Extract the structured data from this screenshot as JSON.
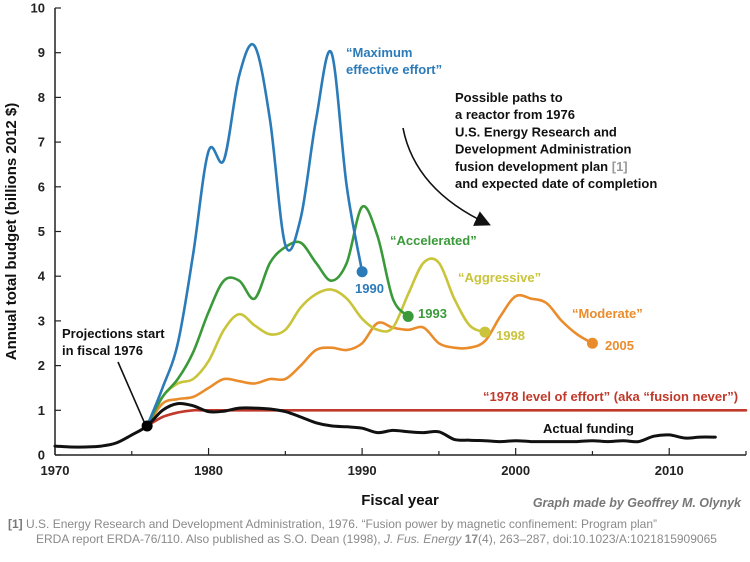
{
  "chart_data": {
    "type": "line",
    "xlabel": "Fiscal year",
    "ylabel": "Annual total budget (billions 2012 $)",
    "xlim": [
      1970,
      2015
    ],
    "ylim": [
      0,
      10
    ],
    "xticks": [
      1970,
      1980,
      1990,
      2000,
      2010
    ],
    "yticks": [
      0,
      1,
      2,
      3,
      4,
      5,
      6,
      7,
      8,
      9,
      10
    ],
    "grid": false,
    "series": [
      {
        "name": "“Maximum effective effort”",
        "color": "#2b7bb9",
        "end_label": "1990",
        "x": [
          1976,
          1977,
          1978,
          1979,
          1980,
          1981,
          1982,
          1983,
          1984,
          1985,
          1986,
          1987,
          1988,
          1989,
          1990
        ],
        "y": [
          0.65,
          1.5,
          2.5,
          4.5,
          6.8,
          6.6,
          8.5,
          9.15,
          7.5,
          4.7,
          5.3,
          7.5,
          9.0,
          6.0,
          4.1
        ]
      },
      {
        "name": "“Accelerated”",
        "color": "#3a9a3a",
        "end_label": "1993",
        "x": [
          1976,
          1977,
          1978,
          1979,
          1980,
          1981,
          1982,
          1983,
          1984,
          1985,
          1986,
          1987,
          1988,
          1989,
          1990,
          1991,
          1992,
          1993
        ],
        "y": [
          0.65,
          1.3,
          1.7,
          2.3,
          3.2,
          3.9,
          3.9,
          3.5,
          4.3,
          4.65,
          4.75,
          4.3,
          3.9,
          4.3,
          5.55,
          4.9,
          3.5,
          3.1
        ]
      },
      {
        "name": "“Aggressive”",
        "color": "#c9c43a",
        "end_label": "1998",
        "x": [
          1976,
          1977,
          1978,
          1979,
          1980,
          1981,
          1982,
          1983,
          1984,
          1985,
          1986,
          1987,
          1988,
          1989,
          1990,
          1991,
          1992,
          1993,
          1994,
          1995,
          1996,
          1997,
          1998
        ],
        "y": [
          0.65,
          1.3,
          1.6,
          1.7,
          2.1,
          2.8,
          3.15,
          2.9,
          2.7,
          2.8,
          3.3,
          3.6,
          3.7,
          3.5,
          3.05,
          2.8,
          2.85,
          3.6,
          4.3,
          4.3,
          3.5,
          2.9,
          2.75
        ]
      },
      {
        "name": "“Moderate”",
        "color": "#ea8c2b",
        "end_label": "2005",
        "x": [
          1976,
          1977,
          1978,
          1979,
          1980,
          1981,
          1982,
          1983,
          1984,
          1985,
          1986,
          1987,
          1988,
          1989,
          1990,
          1991,
          1992,
          1993,
          1994,
          1995,
          1996,
          1997,
          1998,
          1999,
          2000,
          2001,
          2002,
          2003,
          2004,
          2005
        ],
        "y": [
          0.65,
          1.15,
          1.25,
          1.3,
          1.5,
          1.7,
          1.65,
          1.6,
          1.7,
          1.7,
          2.0,
          2.35,
          2.4,
          2.35,
          2.5,
          2.95,
          2.85,
          2.8,
          2.85,
          2.5,
          2.4,
          2.4,
          2.55,
          3.1,
          3.55,
          3.5,
          3.4,
          3.0,
          2.7,
          2.5
        ]
      },
      {
        "name": "“1978 level of effort” (aka “fusion never”)",
        "color": "#c0392b",
        "x": [
          1976,
          1977,
          1978,
          1979,
          1980,
          1985,
          1990,
          1995,
          2000,
          2005,
          2010,
          2015
        ],
        "y": [
          0.65,
          0.85,
          0.95,
          1.0,
          1.0,
          1.0,
          1.0,
          1.0,
          1.0,
          1.0,
          1.0,
          1.0
        ]
      },
      {
        "name": "Actual funding",
        "color": "#111111",
        "x": [
          1970,
          1971,
          1972,
          1973,
          1974,
          1975,
          1976,
          1977,
          1978,
          1979,
          1980,
          1981,
          1982,
          1983,
          1984,
          1985,
          1986,
          1987,
          1988,
          1989,
          1990,
          1991,
          1992,
          1993,
          1994,
          1995,
          1996,
          1997,
          1998,
          1999,
          2000,
          2001,
          2002,
          2003,
          2004,
          2005,
          2006,
          2007,
          2008,
          2009,
          2010,
          2011,
          2012,
          2013
        ],
        "y": [
          0.2,
          0.18,
          0.18,
          0.2,
          0.27,
          0.45,
          0.65,
          1.0,
          1.15,
          1.1,
          0.97,
          0.98,
          1.05,
          1.05,
          1.03,
          0.97,
          0.85,
          0.72,
          0.65,
          0.63,
          0.6,
          0.5,
          0.55,
          0.52,
          0.5,
          0.52,
          0.35,
          0.33,
          0.32,
          0.3,
          0.32,
          0.3,
          0.3,
          0.3,
          0.3,
          0.32,
          0.3,
          0.32,
          0.3,
          0.42,
          0.45,
          0.38,
          0.4,
          0.4
        ]
      }
    ],
    "start_point": {
      "x": 1976,
      "y": 0.65
    },
    "annotations": {
      "projections_start": [
        "Projections start",
        "in fiscal 1976"
      ],
      "possible_paths": [
        "Possible paths to",
        "a reactor from 1976",
        "U.S. Energy Research and",
        "Development Administration",
        "fusion development plan",
        "and expected date of completion"
      ],
      "possible_paths_ref": "[1]",
      "credit": "Graph made by Geoffrey M. Olynyk"
    }
  },
  "footnote": {
    "ref": "[1]",
    "line1": "U.S. Energy Research and Development Administration, 1976. “Fusion power by magnetic confinement: Program plan”",
    "line2_pre": "ERDA report ERDA-76/110. Also published as S.O. Dean (1998), ",
    "journal": "J. Fus. Energy",
    "volume": "17",
    "line2_post": "(4), 263–287, doi:10.1023/A:1021815909065"
  }
}
